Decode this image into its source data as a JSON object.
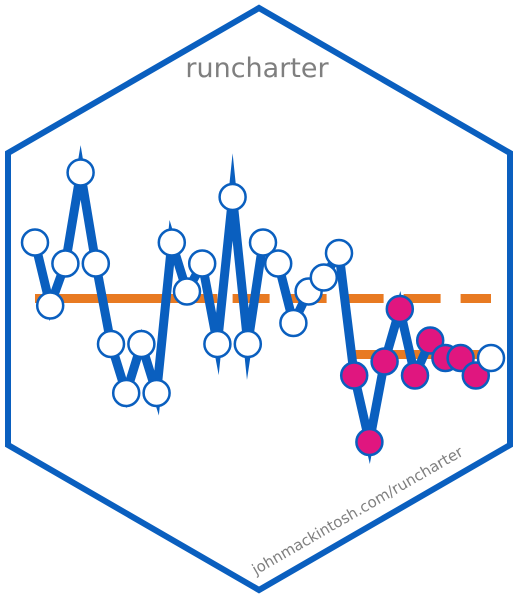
{
  "title": "runcharter",
  "url": "johnmackintosh.com/runcharter",
  "colors": {
    "hex_border": "#0a5fbf",
    "line": "#0a5fbf",
    "median": "#e87a22",
    "point_fill": "#ffffff",
    "highlight_fill": "#e0167f"
  },
  "chart_data": {
    "type": "line",
    "points": [
      {
        "x": 1,
        "y": 63,
        "highlight": false
      },
      {
        "x": 2,
        "y": 45,
        "highlight": false
      },
      {
        "x": 3,
        "y": 57,
        "highlight": false
      },
      {
        "x": 4,
        "y": 83,
        "highlight": false
      },
      {
        "x": 5,
        "y": 57,
        "highlight": false
      },
      {
        "x": 6,
        "y": 34,
        "highlight": false
      },
      {
        "x": 7,
        "y": 20,
        "highlight": false
      },
      {
        "x": 8,
        "y": 34,
        "highlight": false
      },
      {
        "x": 9,
        "y": 20,
        "highlight": false
      },
      {
        "x": 10,
        "y": 63,
        "highlight": false
      },
      {
        "x": 11,
        "y": 49,
        "highlight": false
      },
      {
        "x": 12,
        "y": 57,
        "highlight": false
      },
      {
        "x": 13,
        "y": 34,
        "highlight": false
      },
      {
        "x": 14,
        "y": 76,
        "highlight": false
      },
      {
        "x": 15,
        "y": 34,
        "highlight": false
      },
      {
        "x": 16,
        "y": 63,
        "highlight": false
      },
      {
        "x": 17,
        "y": 57,
        "highlight": false
      },
      {
        "x": 18,
        "y": 40,
        "highlight": false
      },
      {
        "x": 19,
        "y": 49,
        "highlight": false
      },
      {
        "x": 20,
        "y": 53,
        "highlight": false
      },
      {
        "x": 21,
        "y": 60,
        "highlight": false
      },
      {
        "x": 22,
        "y": 25,
        "highlight": true
      },
      {
        "x": 23,
        "y": 6,
        "highlight": true
      },
      {
        "x": 24,
        "y": 29,
        "highlight": true
      },
      {
        "x": 25,
        "y": 44,
        "highlight": true
      },
      {
        "x": 26,
        "y": 25,
        "highlight": true
      },
      {
        "x": 27,
        "y": 35,
        "highlight": true
      },
      {
        "x": 28,
        "y": 30,
        "highlight": true
      },
      {
        "x": 29,
        "y": 30,
        "highlight": true
      },
      {
        "x": 30,
        "y": 25,
        "highlight": true
      },
      {
        "x": 31,
        "y": 30,
        "highlight": false
      }
    ],
    "median_segments": [
      {
        "x_start": 1,
        "x_end": 13,
        "y": 47,
        "style": "solid"
      },
      {
        "x_start": 14,
        "x_end": 31,
        "y": 47,
        "style": "dashed"
      },
      {
        "x_start": 22,
        "x_end": 31,
        "y": 31,
        "style": "solid"
      }
    ],
    "xlim": [
      0,
      32
    ],
    "ylim": [
      0,
      90
    ]
  }
}
